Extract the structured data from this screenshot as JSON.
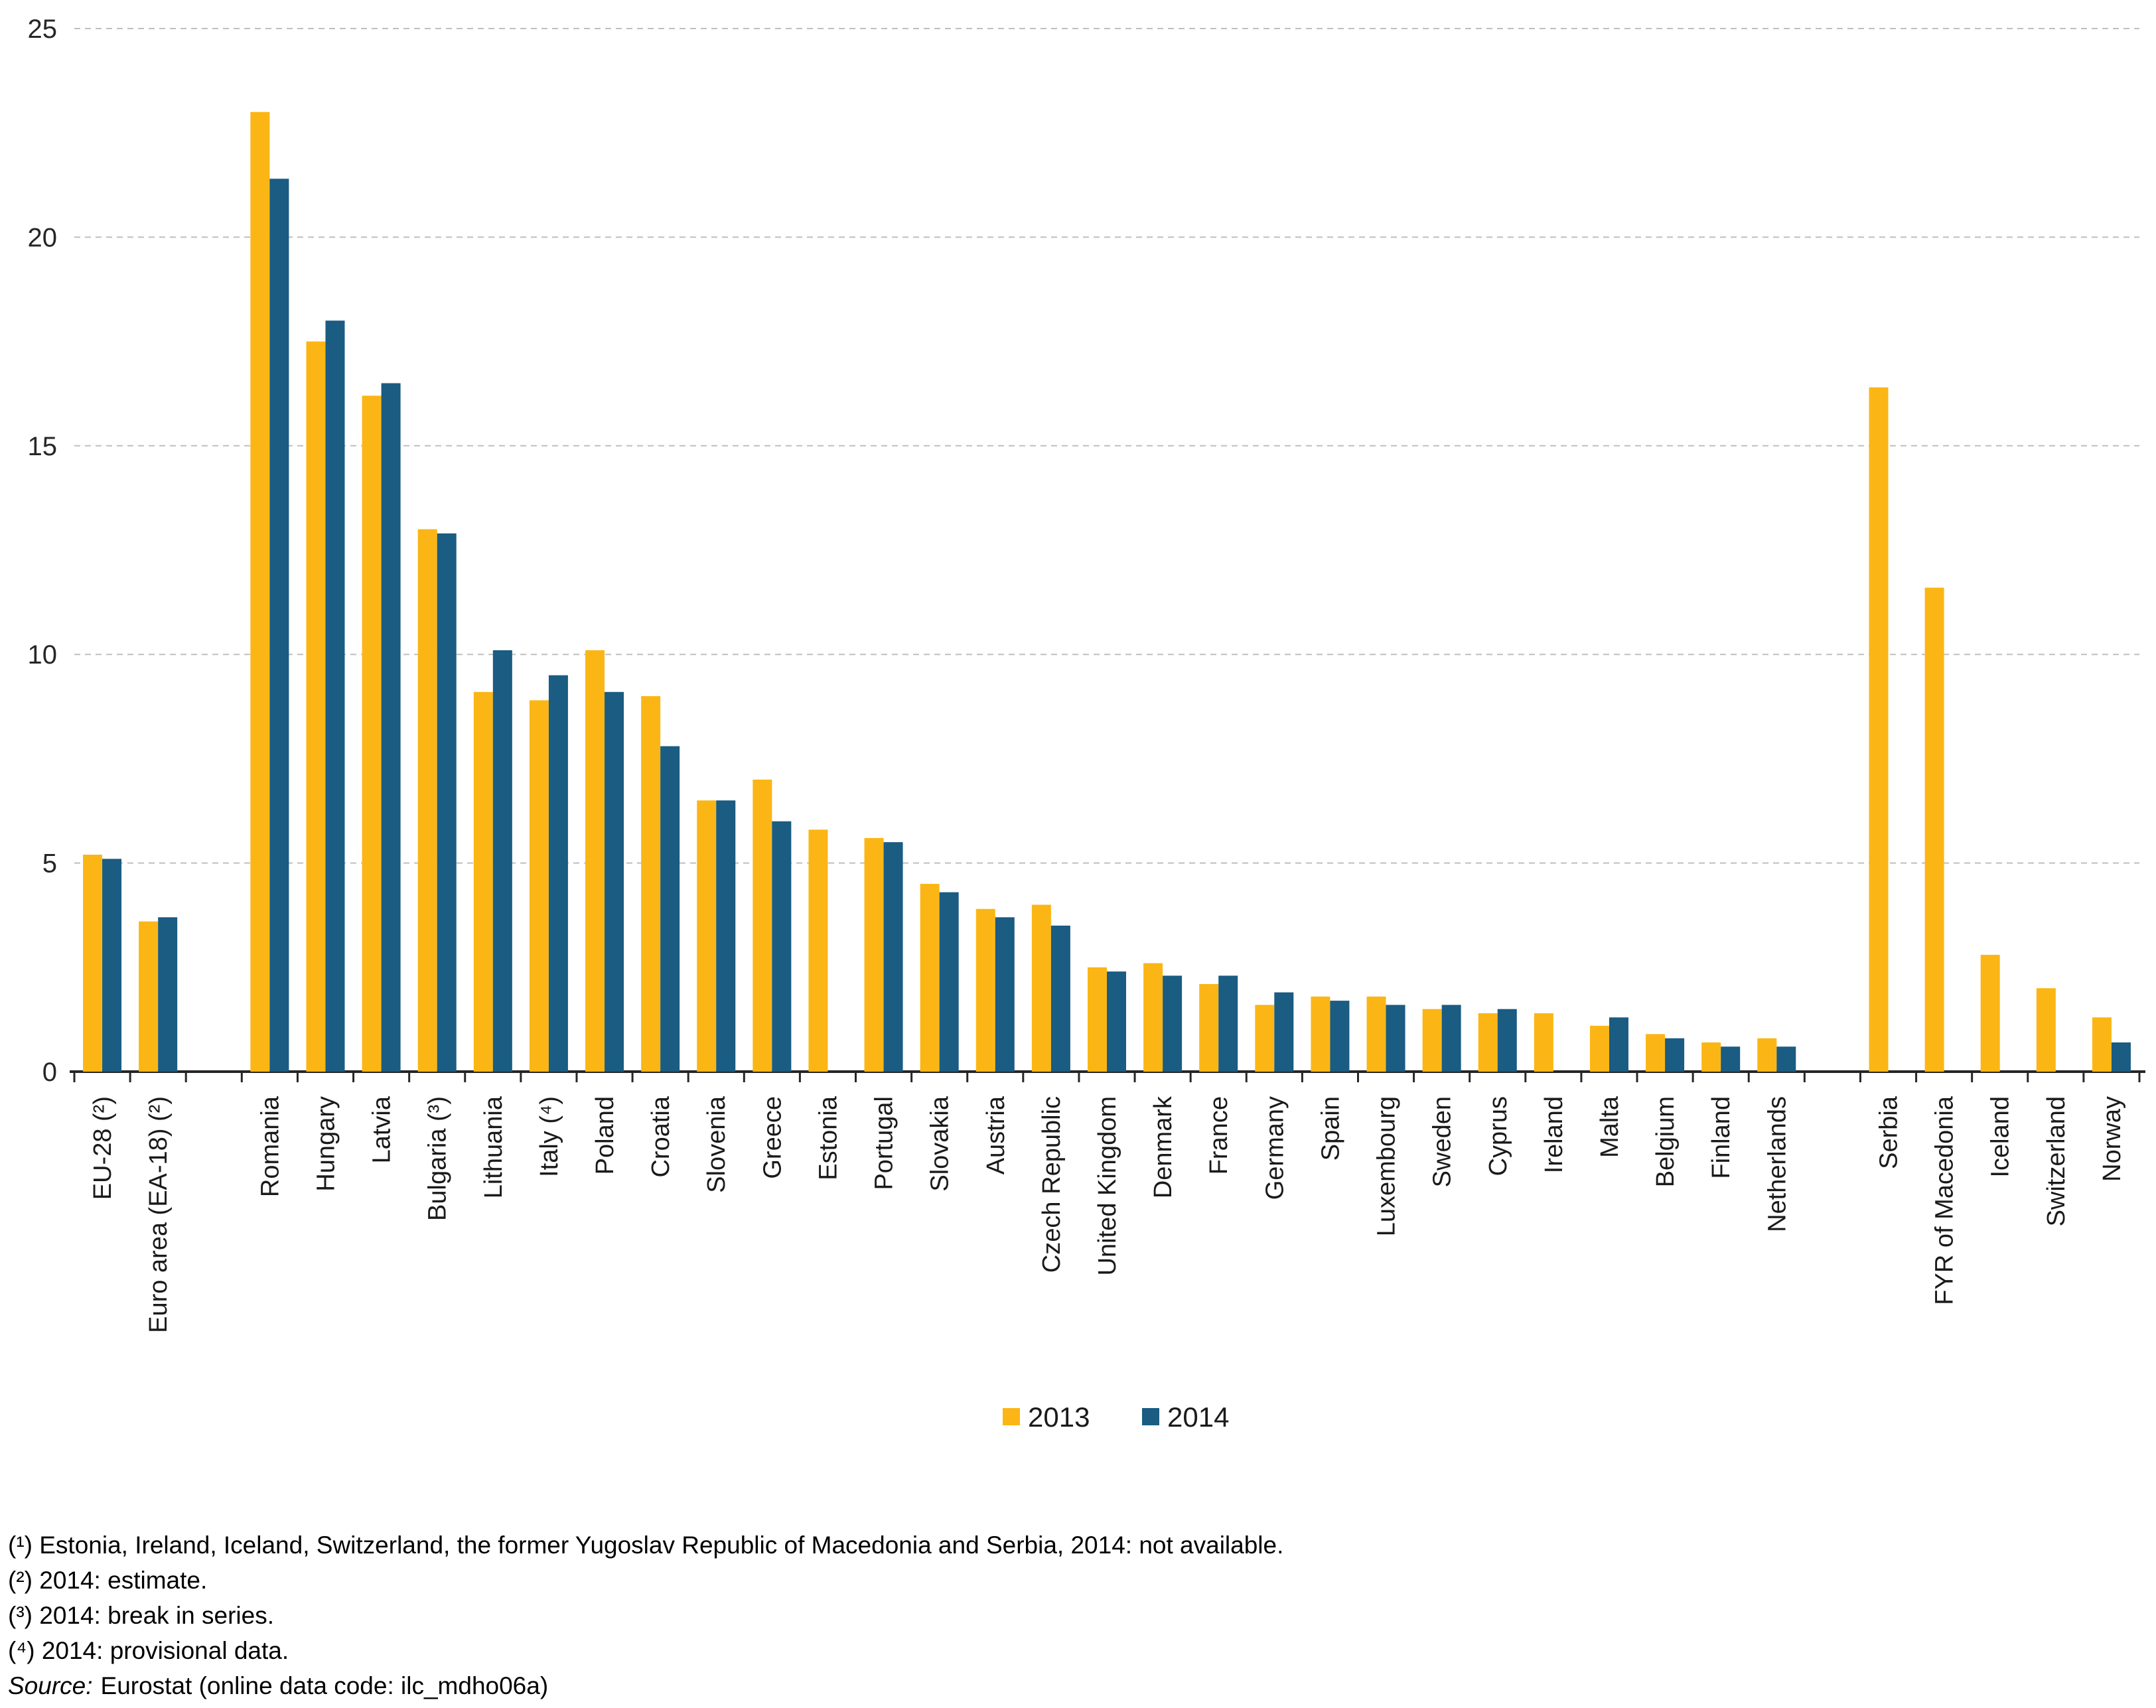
{
  "chart_data": {
    "type": "bar",
    "title": "",
    "xlabel": "",
    "ylabel": "",
    "ylim": [
      0,
      25
    ],
    "yticks": [
      0,
      5,
      10,
      15,
      20,
      25
    ],
    "grid": "horizontal-dashed",
    "legend_position": "bottom-center",
    "categories": [
      "EU-28 (²)",
      "Euro area (EA-18) (²)",
      "",
      "Romania",
      "Hungary",
      "Latvia",
      "Bulgaria (³)",
      "Lithuania",
      "Italy (⁴)",
      "Poland",
      "Croatia",
      "Slovenia",
      "Greece",
      "Estonia",
      "Portugal",
      "Slovakia",
      "Austria",
      "Czech Republic",
      "United Kingdom",
      "Denmark",
      "France",
      "Germany",
      "Spain",
      "Luxembourg",
      "Sweden",
      "Cyprus",
      "Ireland",
      "Malta",
      "Belgium",
      "Finland",
      "Netherlands",
      "",
      "Serbia",
      "FYR of Macedonia",
      "Iceland",
      "Switzerland",
      "Norway"
    ],
    "series": [
      {
        "name": "2013",
        "color": "#FBB615",
        "values": [
          5.2,
          3.6,
          null,
          23.0,
          17.5,
          16.2,
          13.0,
          9.1,
          8.9,
          10.1,
          9.0,
          6.5,
          7.0,
          5.8,
          5.6,
          4.5,
          3.9,
          4.0,
          2.5,
          2.6,
          2.1,
          1.6,
          1.8,
          1.8,
          1.5,
          1.4,
          1.4,
          1.1,
          0.9,
          0.7,
          0.8,
          null,
          16.4,
          11.6,
          2.8,
          2.0,
          1.3
        ]
      },
      {
        "name": "2014",
        "color": "#1A5C82",
        "values": [
          5.1,
          3.7,
          null,
          21.4,
          18.0,
          16.5,
          12.9,
          10.1,
          9.5,
          9.1,
          7.8,
          6.5,
          6.0,
          null,
          5.5,
          4.3,
          3.7,
          3.5,
          2.4,
          2.3,
          2.3,
          1.9,
          1.7,
          1.6,
          1.6,
          1.5,
          null,
          1.3,
          0.8,
          0.6,
          0.6,
          null,
          null,
          null,
          null,
          null,
          0.7
        ]
      }
    ],
    "axis_color": "#262626",
    "gridline_color": "#BFBFBF",
    "label_color": "#1a1a1a"
  },
  "footnotes": [
    "(¹) Estonia, Ireland, Iceland, Switzerland, the former Yugoslav Republic of Macedonia and Serbia, 2014: not available.",
    "(²) 2014: estimate.",
    "(³) 2014: break in series.",
    "(⁴) 2014: provisional data."
  ],
  "source": {
    "label": "Source:",
    "text": "Eurostat (online data code: ilc_mdho06a)"
  }
}
